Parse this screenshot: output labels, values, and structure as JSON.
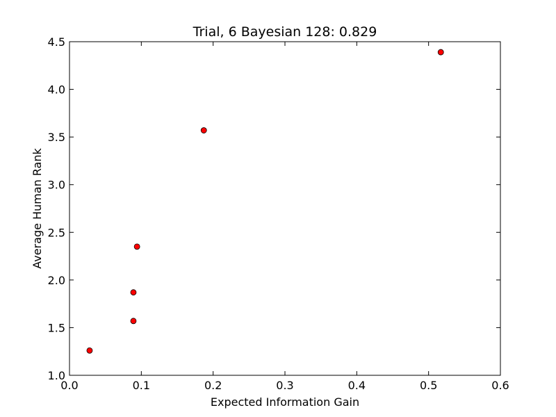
{
  "chart_data": {
    "type": "scatter",
    "title": "Trial, 6 Bayesian 128: 0.829",
    "xlabel": "Expected Information Gain",
    "ylabel": "Average Human Rank",
    "xlim": [
      0.0,
      0.6
    ],
    "ylim": [
      1.0,
      4.5
    ],
    "xticks": [
      "0.0",
      "0.1",
      "0.2",
      "0.3",
      "0.4",
      "0.5",
      "0.6"
    ],
    "yticks": [
      "1.0",
      "1.5",
      "2.0",
      "2.5",
      "3.0",
      "3.5",
      "4.0",
      "4.5"
    ],
    "grid": false,
    "marker_color": "#ff0000",
    "marker_edge_color": "#000000",
    "points": [
      {
        "x": 0.028,
        "y": 1.26
      },
      {
        "x": 0.089,
        "y": 1.57
      },
      {
        "x": 0.089,
        "y": 1.87
      },
      {
        "x": 0.094,
        "y": 2.35
      },
      {
        "x": 0.187,
        "y": 3.57
      },
      {
        "x": 0.517,
        "y": 4.39
      }
    ]
  }
}
